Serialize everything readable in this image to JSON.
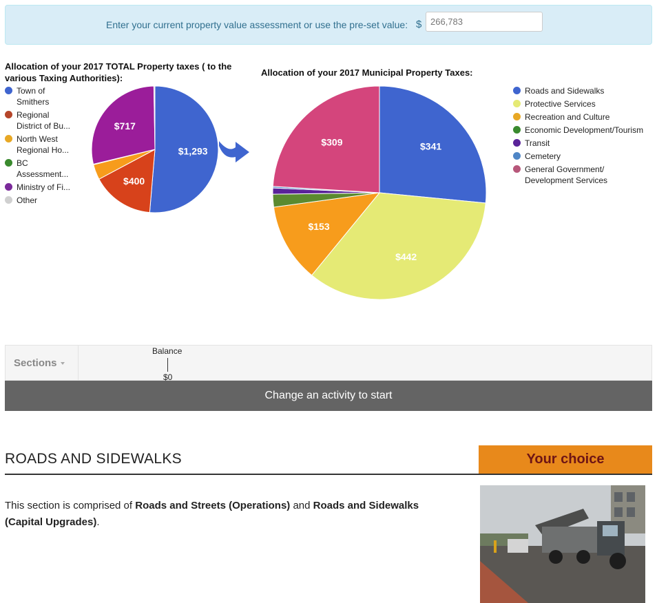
{
  "assessment": {
    "label": "Enter your current property value assessment or use the pre-set value:",
    "currency": "$",
    "value": "266,783"
  },
  "colors": {
    "blue": "#3f65cf",
    "red": "#d7421b",
    "orange": "#f79c1c",
    "green": "#2f8f27",
    "purple": "#9b1d9a",
    "gray": "#d0d0d0",
    "yellow": "#e5ea75",
    "pink": "#d4457c",
    "darkpurple": "#5a2399",
    "lightblue": "#4f86c6",
    "mauve": "#b7577a",
    "bc_green": "#5b8a2f",
    "info_bg": "#d9edf7",
    "choice_orange": "#e8891b",
    "start_bar": "#646464"
  },
  "chart_data": [
    {
      "type": "pie",
      "title": "Allocation of your 2017 TOTAL Property taxes ( to the various Taxing Authorities):",
      "legend_position": "left",
      "categories": [
        "Town of Smithers",
        "Regional District of Bu...",
        "North West Regional Ho...",
        "BC Assessment...",
        "Ministry of Fi...",
        "Other"
      ],
      "values": [
        1293,
        400,
        98,
        4,
        717,
        7
      ],
      "data_labels": [
        "$1,293",
        "$400",
        "",
        "",
        "$717",
        ""
      ]
    },
    {
      "type": "pie",
      "title": "Allocation of your 2017 Municipal Property Taxes:",
      "legend_position": "right",
      "categories": [
        "Roads and Sidewalks",
        "Protective Services",
        "Recreation and Culture",
        "Economic Development/Tourism",
        "Transit",
        "Cemetery",
        "General Government/ Development Services"
      ],
      "values": [
        341,
        442,
        153,
        25,
        12,
        3,
        309
      ],
      "data_labels": [
        "$341",
        "$442",
        "$153",
        "",
        "",
        "",
        "$309"
      ]
    }
  ],
  "sections": {
    "button_label": "Sections",
    "balance_label": "Balance",
    "balance_value": "$0"
  },
  "start_bar": {
    "text": "Change an activity to start"
  },
  "section": {
    "title": "ROADS AND SIDEWALKS",
    "choice_label": "Your choice",
    "desc_prefix": "This section is comprised of ",
    "desc_bold1": "Roads and Streets (Operations)",
    "desc_mid": " and ",
    "desc_bold2": "Roads and Sidewalks (Capital Upgrades)",
    "desc_suffix": "."
  }
}
